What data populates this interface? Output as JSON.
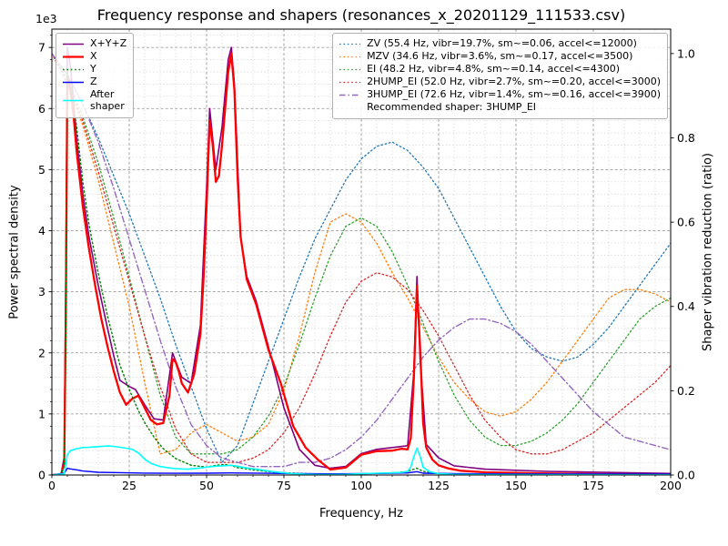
{
  "title": "Frequency response and shapers (resonances_x_20201129_111533.csv)",
  "axes": {
    "x": {
      "label": "Frequency, Hz",
      "min": 0,
      "max": 200,
      "minor_step": 5,
      "major_ticks": [
        0,
        25,
        50,
        75,
        100,
        125,
        150,
        175,
        200
      ],
      "tick_labels": [
        "0",
        "25",
        "50",
        "75",
        "100",
        "125",
        "150",
        "175",
        "200"
      ]
    },
    "y_left": {
      "label": "Power spectral density",
      "offset_text": "1e3",
      "min": 0,
      "max": 7300,
      "minor_step": 200,
      "major_ticks": [
        0,
        1000,
        2000,
        3000,
        4000,
        5000,
        6000,
        7000
      ],
      "tick_labels": [
        "0",
        "1",
        "2",
        "3",
        "4",
        "5",
        "6",
        "7"
      ]
    },
    "y_right": {
      "label": "Shaper vibration reduction (ratio)",
      "min": 0,
      "max": 1.058,
      "major_ticks": [
        0,
        0.2,
        0.4,
        0.6,
        0.8,
        1.0
      ],
      "tick_labels": [
        "0.0",
        "0.2",
        "0.4",
        "0.6",
        "0.8",
        "1.0"
      ]
    }
  },
  "legend_psd": {
    "items": [
      {
        "label": "X+Y+Z",
        "series": "X+Y+Z"
      },
      {
        "label": "X",
        "series": "X"
      },
      {
        "label": "Y",
        "series": "Y"
      },
      {
        "label": "Z",
        "series": "Z"
      },
      {
        "label": "After\nshaper",
        "series": "After shaper"
      }
    ]
  },
  "legend_shapers": {
    "items": [
      {
        "label": "ZV (55.4 Hz, vibr=19.7%, sm~=0.06, accel<=12000)",
        "series": "ZV"
      },
      {
        "label": "MZV (34.6 Hz, vibr=3.6%, sm~=0.17, accel<=3500)",
        "series": "MZV"
      },
      {
        "label": "EI (48.2 Hz, vibr=4.8%, sm~=0.14, accel<=4300)",
        "series": "EI"
      },
      {
        "label": "2HUMP_EI (52.0 Hz, vibr=2.7%, sm~=0.20, accel<=3000)",
        "series": "2HUMP_EI"
      },
      {
        "label": "3HUMP_EI (72.6 Hz, vibr=1.4%, sm~=0.16, accel<=3900)",
        "series": "3HUMP_EI"
      }
    ],
    "note": "Recommended shaper: 3HUMP_EI"
  },
  "chart_data": {
    "type": "line",
    "title": "Frequency response and shapers (resonances_x_20201129_111533.csv)",
    "xlabel": "Frequency, Hz",
    "ylabel_left": "Power spectral density",
    "ylabel_right": "Shaper vibration reduction (ratio)",
    "xlim": [
      0,
      200
    ],
    "ylim_left": [
      0,
      7300
    ],
    "ylim_right": [
      0,
      1.058
    ],
    "grid": true,
    "series": [
      {
        "name": "ZV",
        "axis": "right",
        "color": "#1f77b4",
        "style": "dotted",
        "width": 1.3,
        "x": [
          0,
          5,
          10,
          15,
          20,
          25,
          30,
          35,
          40,
          45,
          50,
          55,
          60,
          65,
          70,
          75,
          80,
          85,
          90,
          95,
          100,
          105,
          110,
          115,
          120,
          125,
          130,
          135,
          140,
          145,
          150,
          155,
          160,
          165,
          170,
          175,
          180,
          185,
          190,
          195,
          200
        ],
        "y": [
          1.0,
          0.95,
          0.88,
          0.8,
          0.71,
          0.62,
          0.52,
          0.42,
          0.31,
          0.21,
          0.11,
          0.03,
          0.07,
          0.17,
          0.27,
          0.37,
          0.47,
          0.56,
          0.63,
          0.7,
          0.75,
          0.78,
          0.79,
          0.77,
          0.73,
          0.68,
          0.61,
          0.54,
          0.47,
          0.4,
          0.34,
          0.3,
          0.28,
          0.27,
          0.28,
          0.31,
          0.35,
          0.4,
          0.45,
          0.5,
          0.55
        ]
      },
      {
        "name": "MZV",
        "axis": "right",
        "color": "#ff7f0e",
        "style": "dotted",
        "width": 1.3,
        "x": [
          0,
          5,
          10,
          15,
          20,
          25,
          30,
          35,
          40,
          45,
          50,
          55,
          60,
          65,
          70,
          75,
          80,
          85,
          90,
          95,
          100,
          105,
          110,
          115,
          120,
          125,
          130,
          135,
          140,
          145,
          150,
          155,
          160,
          165,
          170,
          175,
          180,
          185,
          190,
          195,
          200
        ],
        "y": [
          1.0,
          0.93,
          0.83,
          0.7,
          0.55,
          0.4,
          0.22,
          0.05,
          0.06,
          0.1,
          0.12,
          0.1,
          0.08,
          0.09,
          0.12,
          0.2,
          0.33,
          0.48,
          0.6,
          0.62,
          0.6,
          0.55,
          0.48,
          0.42,
          0.35,
          0.28,
          0.22,
          0.18,
          0.15,
          0.14,
          0.15,
          0.18,
          0.22,
          0.27,
          0.32,
          0.37,
          0.42,
          0.44,
          0.44,
          0.43,
          0.41
        ]
      },
      {
        "name": "EI",
        "axis": "right",
        "color": "#2ca02c",
        "style": "dotted",
        "width": 1.3,
        "x": [
          0,
          5,
          10,
          15,
          20,
          25,
          30,
          35,
          40,
          45,
          50,
          55,
          60,
          65,
          70,
          75,
          80,
          85,
          90,
          95,
          100,
          105,
          110,
          115,
          120,
          125,
          130,
          135,
          140,
          145,
          150,
          155,
          160,
          165,
          170,
          175,
          180,
          185,
          190,
          195,
          200
        ],
        "y": [
          1.0,
          0.94,
          0.85,
          0.74,
          0.61,
          0.47,
          0.33,
          0.19,
          0.09,
          0.05,
          0.05,
          0.05,
          0.06,
          0.09,
          0.14,
          0.21,
          0.31,
          0.42,
          0.52,
          0.59,
          0.61,
          0.59,
          0.53,
          0.45,
          0.36,
          0.27,
          0.19,
          0.13,
          0.09,
          0.07,
          0.07,
          0.08,
          0.1,
          0.13,
          0.17,
          0.22,
          0.27,
          0.32,
          0.37,
          0.4,
          0.42
        ]
      },
      {
        "name": "2HUMP_EI",
        "axis": "right",
        "color": "#d62728",
        "style": "dotted",
        "width": 1.3,
        "x": [
          0,
          5,
          10,
          15,
          20,
          25,
          30,
          35,
          40,
          45,
          50,
          55,
          60,
          65,
          70,
          75,
          80,
          85,
          90,
          95,
          100,
          105,
          110,
          115,
          120,
          125,
          130,
          135,
          140,
          145,
          150,
          155,
          160,
          165,
          170,
          175,
          180,
          185,
          190,
          195,
          200
        ],
        "y": [
          1.0,
          0.93,
          0.84,
          0.72,
          0.59,
          0.46,
          0.33,
          0.21,
          0.11,
          0.05,
          0.03,
          0.03,
          0.03,
          0.04,
          0.06,
          0.1,
          0.16,
          0.24,
          0.33,
          0.41,
          0.46,
          0.48,
          0.47,
          0.44,
          0.39,
          0.33,
          0.26,
          0.19,
          0.13,
          0.09,
          0.06,
          0.05,
          0.05,
          0.06,
          0.08,
          0.1,
          0.13,
          0.16,
          0.19,
          0.22,
          0.26
        ]
      },
      {
        "name": "3HUMP_EI",
        "axis": "right",
        "color": "#9467bd",
        "style": "dashdot",
        "width": 1.4,
        "x": [
          0,
          5,
          10,
          15,
          20,
          25,
          30,
          35,
          40,
          45,
          50,
          55,
          60,
          65,
          70,
          75,
          80,
          85,
          90,
          95,
          100,
          105,
          110,
          115,
          120,
          125,
          130,
          135,
          140,
          145,
          150,
          155,
          160,
          165,
          170,
          175,
          180,
          185,
          190,
          195,
          200
        ],
        "y": [
          1.0,
          0.95,
          0.88,
          0.79,
          0.68,
          0.56,
          0.44,
          0.32,
          0.21,
          0.12,
          0.07,
          0.04,
          0.03,
          0.02,
          0.02,
          0.02,
          0.03,
          0.03,
          0.04,
          0.06,
          0.09,
          0.13,
          0.18,
          0.23,
          0.28,
          0.32,
          0.35,
          0.37,
          0.37,
          0.36,
          0.34,
          0.31,
          0.27,
          0.23,
          0.19,
          0.15,
          0.12,
          0.09,
          0.08,
          0.07,
          0.06
        ]
      },
      {
        "name": "X+Y+Z",
        "axis": "left",
        "color": "#800080",
        "style": "solid",
        "width": 1.6,
        "x": [
          0,
          3,
          4,
          4.5,
          5,
          6,
          8,
          10,
          12,
          15,
          18,
          20,
          22,
          25,
          27,
          30,
          33,
          36,
          39,
          42,
          45,
          48,
          50,
          51,
          53,
          55,
          57,
          58,
          59,
          61,
          63,
          66,
          70,
          75,
          80,
          85,
          90,
          95,
          100,
          105,
          110,
          115,
          117,
          118,
          119,
          121,
          125,
          130,
          140,
          160,
          200
        ],
        "y": [
          0,
          15,
          300,
          3200,
          7000,
          6700,
          5500,
          4600,
          3900,
          3100,
          2400,
          1950,
          1550,
          1450,
          1400,
          1150,
          920,
          900,
          2000,
          1600,
          1500,
          2450,
          4700,
          6000,
          5000,
          5700,
          6800,
          7000,
          6400,
          3900,
          3250,
          2850,
          2100,
          1100,
          420,
          160,
          110,
          140,
          350,
          420,
          450,
          480,
          1700,
          3250,
          1900,
          500,
          280,
          150,
          95,
          60,
          25
        ]
      },
      {
        "name": "X",
        "axis": "left",
        "color": "#ff0000",
        "style": "solid",
        "width": 2.3,
        "x": [
          0,
          3,
          4,
          4.5,
          5,
          6,
          7,
          8,
          10,
          12,
          14,
          16,
          18,
          20,
          22,
          24,
          26,
          28,
          30,
          32,
          34,
          36,
          38,
          39,
          40,
          41,
          42,
          44,
          46,
          48,
          49,
          50,
          51,
          52,
          53,
          54,
          55,
          56,
          57,
          58,
          59,
          60,
          61,
          63,
          66,
          70,
          74,
          78,
          82,
          86,
          90,
          95,
          100,
          105,
          110,
          113,
          115,
          116,
          117,
          118,
          119,
          120,
          121,
          123,
          125,
          128,
          132,
          140,
          150,
          160,
          180,
          200
        ],
        "y": [
          0,
          10,
          200,
          2600,
          6500,
          6300,
          5900,
          5300,
          4400,
          3700,
          3100,
          2550,
          2100,
          1700,
          1350,
          1150,
          1250,
          1300,
          1100,
          900,
          830,
          850,
          1300,
          1900,
          1850,
          1700,
          1500,
          1350,
          1650,
          2300,
          3200,
          4400,
          5800,
          5400,
          4800,
          4900,
          5400,
          6000,
          6600,
          6900,
          6300,
          4900,
          3900,
          3200,
          2800,
          2050,
          1500,
          800,
          450,
          250,
          90,
          120,
          330,
          390,
          400,
          430,
          420,
          600,
          1600,
          3100,
          2100,
          850,
          450,
          250,
          160,
          110,
          70,
          45,
          35,
          25,
          15,
          10
        ]
      },
      {
        "name": "Y",
        "axis": "left",
        "color": "#008000",
        "style": "dotted",
        "width": 1.4,
        "x": [
          0,
          3,
          4,
          4.5,
          5,
          6,
          8,
          10,
          12,
          15,
          18,
          20,
          22,
          25,
          28,
          30,
          33,
          36,
          40,
          45,
          50,
          53,
          56,
          58,
          60,
          65,
          70,
          75,
          80,
          90,
          100,
          110,
          115,
          117,
          118,
          120,
          125,
          130,
          140,
          160,
          200
        ],
        "y": [
          0,
          10,
          150,
          2200,
          6600,
          6400,
          5700,
          4800,
          4100,
          3300,
          2600,
          2200,
          1800,
          1400,
          1050,
          860,
          620,
          430,
          270,
          160,
          130,
          160,
          175,
          155,
          120,
          85,
          55,
          38,
          25,
          15,
          20,
          35,
          60,
          95,
          110,
          60,
          25,
          15,
          10,
          8,
          5
        ]
      },
      {
        "name": "Z",
        "axis": "left",
        "color": "#0000ff",
        "style": "solid",
        "width": 1.4,
        "x": [
          0,
          4,
          5,
          6,
          8,
          10,
          15,
          20,
          30,
          40,
          50,
          58,
          60,
          70,
          80,
          90,
          100,
          110,
          115,
          118,
          120,
          130,
          150,
          200
        ],
        "y": [
          0,
          30,
          110,
          100,
          85,
          65,
          45,
          40,
          32,
          28,
          30,
          35,
          33,
          28,
          22,
          20,
          22,
          28,
          35,
          55,
          30,
          22,
          18,
          15
        ]
      },
      {
        "name": "After shaper",
        "axis": "left",
        "color": "#00ffff",
        "style": "solid",
        "width": 1.6,
        "x": [
          0,
          4,
          5,
          6,
          8,
          10,
          12,
          15,
          18,
          20,
          22,
          24,
          26,
          28,
          30,
          32,
          35,
          38,
          40,
          44,
          48,
          50,
          52,
          55,
          58,
          60,
          63,
          66,
          70,
          74,
          78,
          82,
          86,
          90,
          95,
          100,
          105,
          110,
          113,
          115,
          116,
          117,
          118,
          119,
          120,
          122,
          125,
          130,
          140,
          160,
          200
        ],
        "y": [
          0,
          20,
          330,
          400,
          430,
          450,
          455,
          465,
          475,
          470,
          455,
          440,
          420,
          360,
          260,
          190,
          140,
          115,
          105,
          95,
          115,
          130,
          140,
          150,
          160,
          145,
          115,
          95,
          65,
          40,
          22,
          12,
          8,
          6,
          10,
          22,
          30,
          36,
          42,
          60,
          130,
          300,
          440,
          310,
          130,
          55,
          22,
          10,
          6,
          4,
          3
        ]
      }
    ]
  }
}
